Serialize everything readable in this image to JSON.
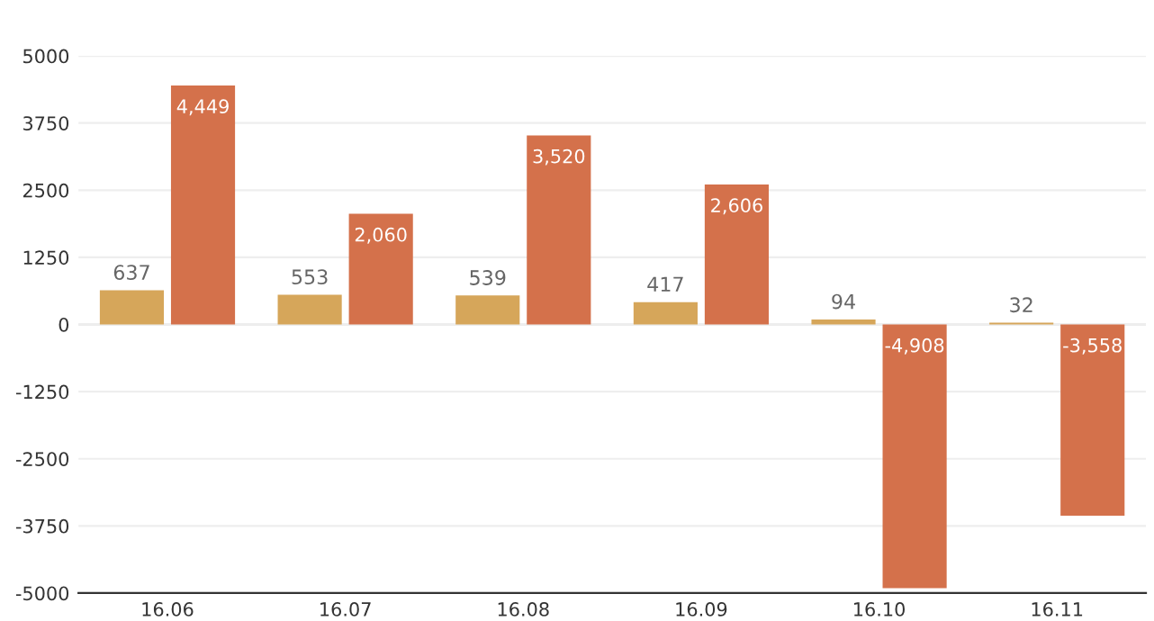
{
  "chart_data": {
    "type": "bar",
    "categories": [
      "16.06",
      "16.07",
      "16.08",
      "16.09",
      "16.10",
      "16.11"
    ],
    "series": [
      {
        "color": "#d6a65a",
        "values": [
          637,
          553,
          539,
          417,
          94,
          32
        ],
        "value_labels": [
          "637",
          "553",
          "539",
          "417",
          "94",
          "32"
        ]
      },
      {
        "color": "#d4714b",
        "values": [
          4449,
          2060,
          3520,
          2606,
          -4908,
          -3558
        ],
        "value_labels": [
          "4,449",
          "2,060",
          "3,520",
          "2,606",
          "-4,908",
          "-3,558"
        ]
      }
    ],
    "ylim": [
      -5000,
      5000
    ],
    "yticks": [
      -5000,
      -3750,
      -2500,
      -1250,
      0,
      1250,
      2500,
      3750,
      5000
    ],
    "grid": "y"
  }
}
